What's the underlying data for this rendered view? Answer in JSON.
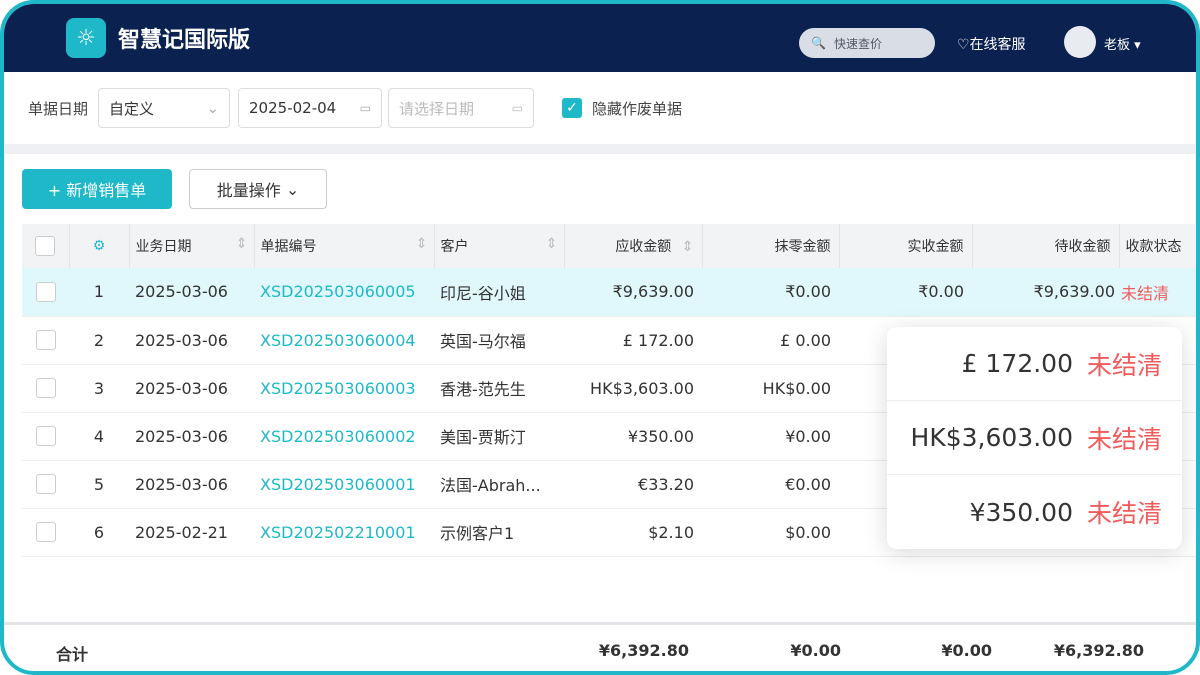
{
  "app": {
    "title": "智慧记国际版",
    "search_placeholder": "快速查价",
    "service": "在线客服",
    "user": "老板"
  },
  "filter": {
    "label": "单据日期",
    "range": "自定义",
    "start_date": "2025-02-04",
    "end_placeholder": "请选择日期",
    "hide_void_label": "隐藏作废单据",
    "hide_void_checked": true
  },
  "toolbar": {
    "add": "+ 新增销售单",
    "batch": "批量操作"
  },
  "table": {
    "headers": [
      "业务日期",
      "单据编号",
      "客户",
      "应收金额",
      "抹零金额",
      "实收金额",
      "待收金额",
      "收款状态"
    ],
    "rows": [
      {
        "n": "1",
        "date": "2025-03-06",
        "no": "XSD202503060005",
        "customer": "印尼-谷小姐",
        "due": "₹9,639.00",
        "round": "₹0.00",
        "received": "₹0.00",
        "pending": "₹9,639.00",
        "status": "未结清"
      },
      {
        "n": "2",
        "date": "2025-03-06",
        "no": "XSD202503060004",
        "customer": "英国-马尔福",
        "due": "£ 172.00",
        "round": "£ 0.00",
        "received": "",
        "pending": "",
        "status": ""
      },
      {
        "n": "3",
        "date": "2025-03-06",
        "no": "XSD202503060003",
        "customer": "香港-范先生",
        "due": "HK$3,603.00",
        "round": "HK$0.00",
        "received": "",
        "pending": "",
        "status": ""
      },
      {
        "n": "4",
        "date": "2025-03-06",
        "no": "XSD202503060002",
        "customer": "美国-贾斯汀",
        "due": "¥350.00",
        "round": "¥0.00",
        "received": "",
        "pending": "",
        "status": ""
      },
      {
        "n": "5",
        "date": "2025-03-06",
        "no": "XSD202503060001",
        "customer": "法国-Abrah...",
        "due": "€33.20",
        "round": "€0.00",
        "received": "",
        "pending": "",
        "status": ""
      },
      {
        "n": "6",
        "date": "2025-02-21",
        "no": "XSD202502210001",
        "customer": "示例客户1",
        "due": "$2.10",
        "round": "$0.00",
        "received": "",
        "pending": "",
        "status": ""
      }
    ],
    "total": {
      "label": "合计",
      "due": "¥6,392.80",
      "round": "¥0.00",
      "received": "¥0.00",
      "pending": "¥6,392.80"
    }
  },
  "popup": [
    {
      "amount": "£ 172.00",
      "status": "未结清"
    },
    {
      "amount": "HK$3,603.00",
      "status": "未结清"
    },
    {
      "amount": "¥350.00",
      "status": "未结清"
    }
  ],
  "colors": {
    "accent": "#1fb8c9",
    "header": "#0b2150",
    "status_red": "#f25b5b"
  }
}
